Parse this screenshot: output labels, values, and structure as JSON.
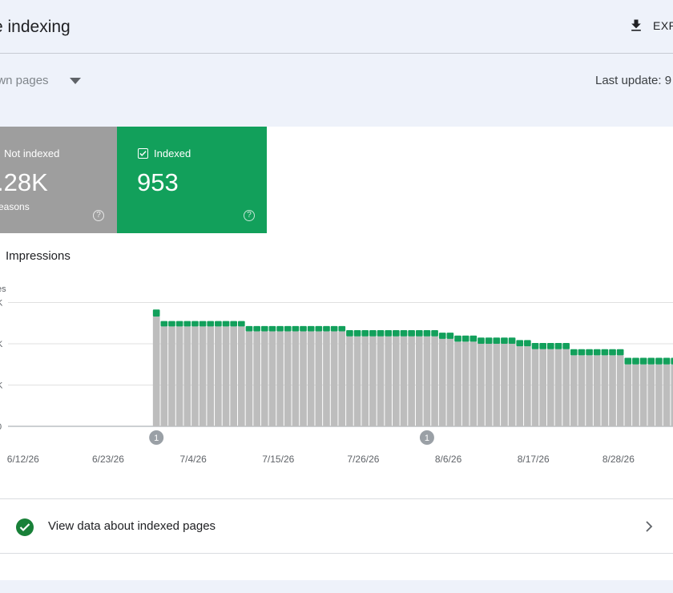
{
  "header": {
    "title": "e indexing",
    "export_label": "EXP",
    "export_icon": "download-icon"
  },
  "filter": {
    "label": "own pages",
    "icon": "dropdown-arrow-icon"
  },
  "last_update": "Last update: 9",
  "cards": {
    "not_indexed": {
      "label": "Not indexed",
      "value": ".28K",
      "sub": "easons",
      "color": "#9e9e9e"
    },
    "indexed": {
      "label": "Indexed",
      "value": "953",
      "color": "#12a05b"
    }
  },
  "impressions_label": "Impressions",
  "chart_data": {
    "type": "bar",
    "stacked": true,
    "ylabel": "es",
    "y_tick_labels": [
      "K",
      "K",
      "K",
      "0"
    ],
    "ylim": [
      0,
      3
    ],
    "x_tick_labels": [
      "6/12/26",
      "6/23/26",
      "7/4/26",
      "7/15/26",
      "7/26/26",
      "8/6/26",
      "8/17/26",
      "8/28/26"
    ],
    "annotations": [
      {
        "label": "1",
        "date": "7/1/26"
      },
      {
        "label": "1",
        "date": "8/5/26"
      }
    ],
    "x": [
      "6/12/26",
      "6/13/26",
      "6/14/26",
      "6/15/26",
      "6/16/26",
      "6/17/26",
      "6/18/26",
      "6/19/26",
      "6/20/26",
      "6/21/26",
      "6/22/26",
      "6/23/26",
      "6/24/26",
      "6/25/26",
      "6/26/26",
      "6/27/26",
      "6/28/26",
      "6/29/26",
      "6/30/26",
      "7/1/26",
      "7/2/26",
      "7/3/26",
      "7/4/26",
      "7/5/26",
      "7/6/26",
      "7/7/26",
      "7/8/26",
      "7/9/26",
      "7/10/26",
      "7/11/26",
      "7/12/26",
      "7/13/26",
      "7/14/26",
      "7/15/26",
      "7/16/26",
      "7/17/26",
      "7/18/26",
      "7/19/26",
      "7/20/26",
      "7/21/26",
      "7/22/26",
      "7/23/26",
      "7/24/26",
      "7/25/26",
      "7/26/26",
      "7/27/26",
      "7/28/26",
      "7/29/26",
      "7/30/26",
      "7/31/26",
      "8/1/26",
      "8/2/26",
      "8/3/26",
      "8/4/26",
      "8/5/26",
      "8/6/26",
      "8/7/26",
      "8/8/26",
      "8/9/26",
      "8/10/26",
      "8/11/26",
      "8/12/26",
      "8/13/26",
      "8/14/26",
      "8/15/26",
      "8/16/26",
      "8/17/26",
      "8/18/26",
      "8/19/26",
      "8/20/26",
      "8/21/26",
      "8/22/26",
      "8/23/26",
      "8/24/26",
      "8/25/26",
      "8/26/26",
      "8/27/26",
      "8/28/26",
      "8/29/26",
      "8/30/26",
      "8/31/26",
      "9/1/26",
      "9/2/26",
      "9/3/26",
      "9/4/26",
      "9/5/26",
      "9/6/26"
    ],
    "series": [
      {
        "name": "Not indexed",
        "color": "#bdbdbd",
        "values": [
          0,
          0,
          0,
          0,
          0,
          0,
          0,
          0,
          0,
          0,
          0,
          0,
          0,
          0,
          0,
          0,
          0,
          0,
          0,
          2.66,
          2.42,
          2.42,
          2.42,
          2.42,
          2.42,
          2.42,
          2.42,
          2.42,
          2.42,
          2.42,
          2.42,
          2.3,
          2.3,
          2.3,
          2.3,
          2.3,
          2.3,
          2.3,
          2.3,
          2.3,
          2.3,
          2.3,
          2.3,
          2.3,
          2.18,
          2.18,
          2.18,
          2.18,
          2.18,
          2.18,
          2.18,
          2.18,
          2.18,
          2.18,
          2.18,
          2.18,
          2.12,
          2.12,
          2.05,
          2.05,
          2.05,
          2.0,
          2.0,
          2.0,
          2.0,
          2.0,
          1.94,
          1.94,
          1.87,
          1.87,
          1.87,
          1.87,
          1.87,
          1.72,
          1.72,
          1.72,
          1.72,
          1.72,
          1.72,
          1.72,
          1.5,
          1.5,
          1.5,
          1.5,
          1.5,
          1.5,
          1.5
        ]
      },
      {
        "name": "Indexed",
        "color": "#12a05b",
        "values": [
          0,
          0,
          0,
          0,
          0,
          0,
          0,
          0,
          0,
          0,
          0,
          0,
          0,
          0,
          0,
          0,
          0,
          0,
          0,
          0.17,
          0.13,
          0.13,
          0.13,
          0.13,
          0.13,
          0.13,
          0.13,
          0.13,
          0.13,
          0.13,
          0.13,
          0.13,
          0.13,
          0.13,
          0.13,
          0.13,
          0.13,
          0.13,
          0.13,
          0.13,
          0.13,
          0.13,
          0.13,
          0.13,
          0.15,
          0.15,
          0.15,
          0.15,
          0.15,
          0.15,
          0.15,
          0.15,
          0.15,
          0.15,
          0.15,
          0.15,
          0.15,
          0.15,
          0.15,
          0.15,
          0.15,
          0.15,
          0.15,
          0.15,
          0.15,
          0.15,
          0.15,
          0.15,
          0.15,
          0.15,
          0.15,
          0.15,
          0.15,
          0.15,
          0.15,
          0.15,
          0.15,
          0.15,
          0.15,
          0.15,
          0.16,
          0.16,
          0.16,
          0.16,
          0.16,
          0.16,
          0.16
        ]
      }
    ]
  },
  "link_card": {
    "label": "View data about indexed pages",
    "icon": "check-circle-icon",
    "chevron": "chevron-right-icon"
  }
}
